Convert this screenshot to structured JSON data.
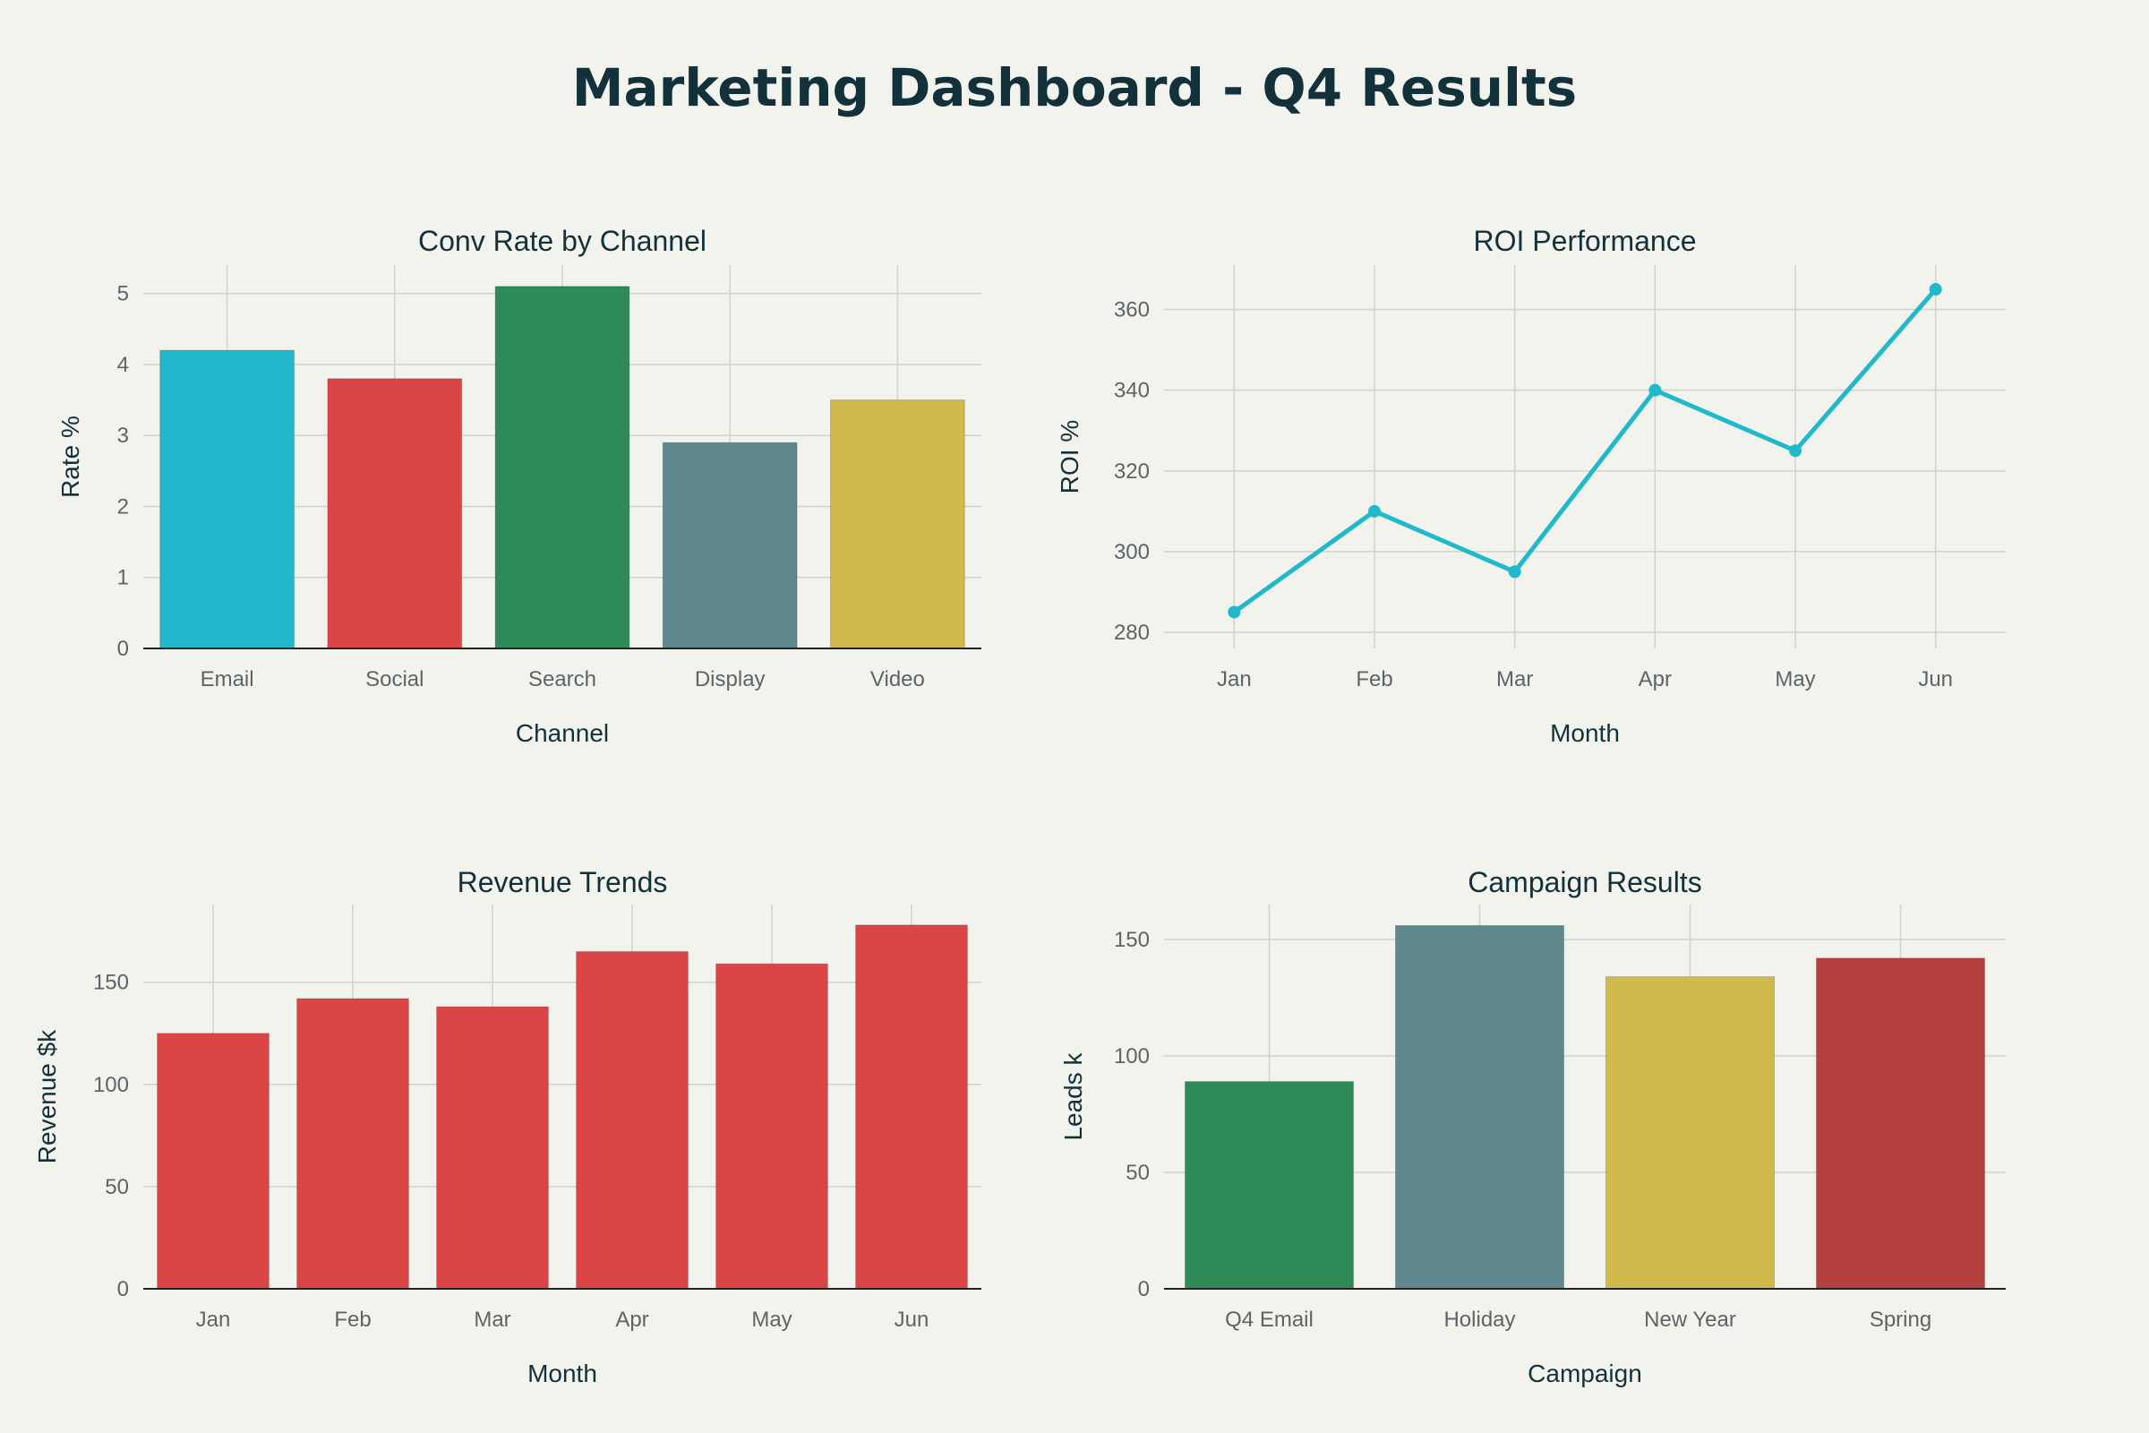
{
  "title": "Marketing Dashboard - Q4 Results",
  "chart_data": [
    {
      "id": "conv",
      "type": "bar",
      "title": "Conv Rate by Channel",
      "xlabel": "Channel",
      "ylabel": "Rate %",
      "categories": [
        "Email",
        "Social",
        "Search",
        "Display",
        "Video"
      ],
      "values": [
        4.2,
        3.8,
        5.1,
        2.9,
        3.5
      ],
      "colors": [
        "#21b8cc",
        "#db4545",
        "#2e8a57",
        "#5e878e",
        "#d2b94d"
      ],
      "ylim": [
        0,
        5.4
      ],
      "yticks": [
        0,
        1,
        2,
        3,
        4,
        5
      ],
      "grid": true
    },
    {
      "id": "roi",
      "type": "line",
      "title": "ROI Performance",
      "xlabel": "Month",
      "ylabel": "ROI %",
      "categories": [
        "Jan",
        "Feb",
        "Mar",
        "Apr",
        "May",
        "Jun"
      ],
      "values": [
        285,
        310,
        295,
        340,
        325,
        365
      ],
      "colors": [
        "#21b8cc"
      ],
      "ylim": [
        276,
        371
      ],
      "yticks": [
        280,
        300,
        320,
        340,
        360
      ],
      "grid": true
    },
    {
      "id": "rev",
      "type": "bar",
      "title": "Revenue Trends",
      "xlabel": "Month",
      "ylabel": "Revenue $k",
      "categories": [
        "Jan",
        "Feb",
        "Mar",
        "Apr",
        "May",
        "Jun"
      ],
      "values": [
        125,
        142,
        138,
        165,
        159,
        178
      ],
      "colors": [
        "#db4545",
        "#db4545",
        "#db4545",
        "#db4545",
        "#db4545",
        "#db4545"
      ],
      "ylim": [
        0,
        188
      ],
      "yticks": [
        0,
        50,
        100,
        150
      ],
      "grid": true
    },
    {
      "id": "camp",
      "type": "bar",
      "title": "Campaign Results",
      "xlabel": "Campaign",
      "ylabel": "Leads k",
      "categories": [
        "Q4 Email",
        "Holiday",
        "New Year",
        "Spring"
      ],
      "values": [
        89,
        156,
        134,
        142
      ],
      "colors": [
        "#2e8a57",
        "#5e878e",
        "#d2b94d",
        "#b5413e"
      ],
      "ylim": [
        0,
        165
      ],
      "yticks": [
        0,
        50,
        100,
        150
      ],
      "grid": true
    }
  ]
}
